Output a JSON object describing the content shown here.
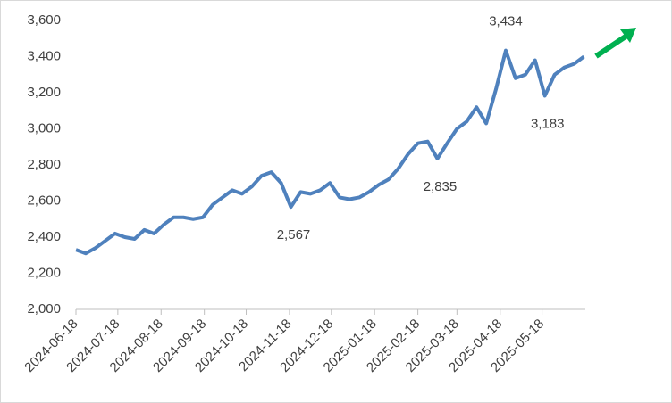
{
  "chart_data": {
    "type": "line",
    "x": [
      "2024-06-18",
      "2024-06-25",
      "2024-07-02",
      "2024-07-09",
      "2024-07-16",
      "2024-07-23",
      "2024-07-30",
      "2024-08-06",
      "2024-08-13",
      "2024-08-20",
      "2024-08-27",
      "2024-09-03",
      "2024-09-10",
      "2024-09-17",
      "2024-09-24",
      "2024-10-01",
      "2024-10-08",
      "2024-10-15",
      "2024-10-22",
      "2024-10-29",
      "2024-11-05",
      "2024-11-12",
      "2024-11-19",
      "2024-11-26",
      "2024-12-03",
      "2024-12-10",
      "2024-12-17",
      "2024-12-24",
      "2024-12-31",
      "2025-01-07",
      "2025-01-14",
      "2025-01-21",
      "2025-01-28",
      "2025-02-04",
      "2025-02-11",
      "2025-02-18",
      "2025-02-25",
      "2025-03-04",
      "2025-03-11",
      "2025-03-18",
      "2025-03-25",
      "2025-04-01",
      "2025-04-08",
      "2025-04-15",
      "2025-04-22",
      "2025-04-29",
      "2025-05-06",
      "2025-05-13",
      "2025-05-20",
      "2025-05-27",
      "2025-06-03",
      "2025-06-10",
      "2025-06-17"
    ],
    "series": [
      {
        "color": "#4f81bd",
        "values": [
          2330,
          2310,
          2340,
          2380,
          2420,
          2400,
          2390,
          2440,
          2420,
          2470,
          2510,
          2510,
          2500,
          2510,
          2580,
          2620,
          2660,
          2640,
          2680,
          2740,
          2760,
          2700,
          2567,
          2650,
          2640,
          2660,
          2700,
          2620,
          2610,
          2620,
          2650,
          2690,
          2720,
          2780,
          2860,
          2920,
          2930,
          2835,
          2920,
          3000,
          3040,
          3120,
          3030,
          3220,
          3434,
          3280,
          3300,
          3380,
          3183,
          3300,
          3340,
          3360,
          3400
        ]
      }
    ],
    "annotations": [
      {
        "x": "2024-11-19",
        "value": 2567,
        "label": "2,567"
      },
      {
        "x": "2025-03-04",
        "value": 2835,
        "label": "2,835"
      },
      {
        "x": "2025-04-22",
        "value": 3434,
        "label": "3,434"
      },
      {
        "x": "2025-05-20",
        "value": 3183,
        "label": "3,183"
      }
    ],
    "xlim": [
      "2024-06-18",
      "2025-06-18"
    ],
    "xticks": [
      "2024-06-18",
      "2024-07-18",
      "2024-08-18",
      "2024-09-18",
      "2024-10-18",
      "2024-11-18",
      "2024-12-18",
      "2025-01-18",
      "2025-02-18",
      "2025-03-18",
      "2025-04-18",
      "2025-05-18"
    ],
    "ylim": [
      2000,
      3600
    ],
    "yticks": [
      {
        "value": 2000,
        "label": "2,000"
      },
      {
        "value": 2200,
        "label": "2,200"
      },
      {
        "value": 2400,
        "label": "2,400"
      },
      {
        "value": 2600,
        "label": "2,600"
      },
      {
        "value": 2800,
        "label": "2,800"
      },
      {
        "value": 3000,
        "label": "3,000"
      },
      {
        "value": 3200,
        "label": "3,200"
      },
      {
        "value": 3400,
        "label": "3,400"
      },
      {
        "value": 3600,
        "label": "3,600"
      }
    ],
    "grid": false
  }
}
